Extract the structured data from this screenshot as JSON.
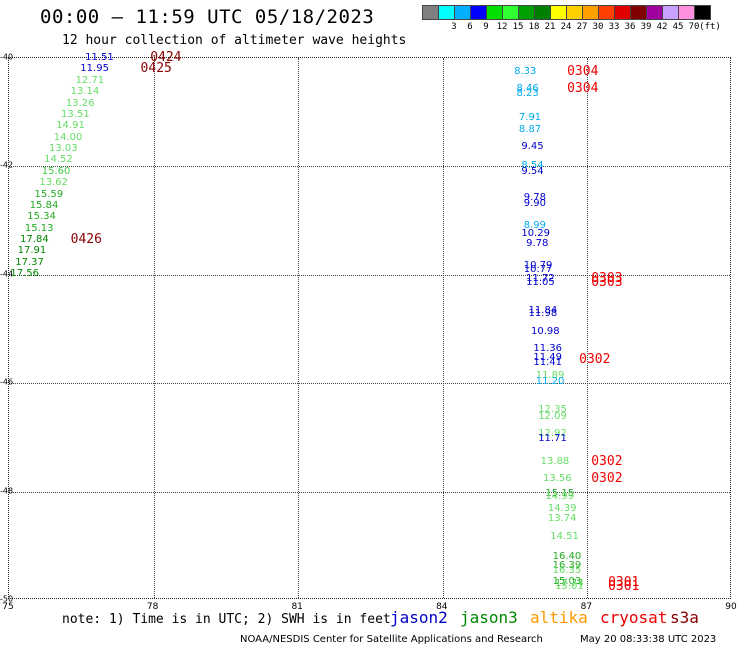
{
  "header": {
    "title": "00:00 – 11:59 UTC 05/18/2023",
    "subtitle": "12 hour collection of altimeter wave heights"
  },
  "colorbar": {
    "bins": [
      {
        "color": "#808080",
        "label": ""
      },
      {
        "color": "#00ffff",
        "label": "3"
      },
      {
        "color": "#00b0ff",
        "label": "6"
      },
      {
        "color": "#0000ff",
        "label": "9"
      },
      {
        "color": "#00e000",
        "label": "12"
      },
      {
        "color": "#30ff30",
        "label": "15"
      },
      {
        "color": "#00a000",
        "label": "18"
      },
      {
        "color": "#008000",
        "label": "21"
      },
      {
        "color": "#ffff00",
        "label": "24"
      },
      {
        "color": "#ffd000",
        "label": "27"
      },
      {
        "color": "#ffa000",
        "label": "30"
      },
      {
        "color": "#ff4000",
        "label": "33"
      },
      {
        "color": "#e00000",
        "label": "36"
      },
      {
        "color": "#800000",
        "label": "39"
      },
      {
        "color": "#a000a0",
        "label": "42"
      },
      {
        "color": "#c8a0ff",
        "label": "45"
      },
      {
        "color": "#ff90e0",
        "label": "70"
      },
      {
        "color": "#000000",
        "label": "(ft)"
      }
    ]
  },
  "map": {
    "lon_range": [
      75,
      90
    ],
    "lat_range": [
      -50,
      -40
    ],
    "x_ticks": [
      "75",
      "78",
      "81",
      "84",
      "87",
      "90"
    ],
    "y_ticks": [
      "-40",
      "-42",
      "-44",
      "-46",
      "-48",
      "-50"
    ]
  },
  "observations": [
    {
      "text": "11.51",
      "lon": 76.6,
      "lat": -40.0,
      "color": "#0000cc"
    },
    {
      "text": "11.95",
      "lon": 76.5,
      "lat": -40.21,
      "color": "#0000cc"
    },
    {
      "text": "12.71",
      "lon": 76.4,
      "lat": -40.42,
      "color": "#66dd66"
    },
    {
      "text": "13.14",
      "lon": 76.3,
      "lat": -40.63,
      "color": "#66dd66"
    },
    {
      "text": "13.26",
      "lon": 76.2,
      "lat": -40.84,
      "color": "#66dd66"
    },
    {
      "text": "13.51",
      "lon": 76.1,
      "lat": -41.05,
      "color": "#66dd66"
    },
    {
      "text": "14.91",
      "lon": 76.0,
      "lat": -41.26,
      "color": "#66dd66"
    },
    {
      "text": "14.00",
      "lon": 75.95,
      "lat": -41.47,
      "color": "#66dd66"
    },
    {
      "text": "13.03",
      "lon": 75.85,
      "lat": -41.68,
      "color": "#66dd66"
    },
    {
      "text": "14.52",
      "lon": 75.75,
      "lat": -41.89,
      "color": "#66dd66"
    },
    {
      "text": "15.60",
      "lon": 75.7,
      "lat": -42.1,
      "color": "#44cc44"
    },
    {
      "text": "13.62",
      "lon": 75.65,
      "lat": -42.31,
      "color": "#66dd66"
    },
    {
      "text": "15.59",
      "lon": 75.55,
      "lat": -42.52,
      "color": "#22aa22"
    },
    {
      "text": "15.84",
      "lon": 75.45,
      "lat": -42.73,
      "color": "#22aa22"
    },
    {
      "text": "15.34",
      "lon": 75.4,
      "lat": -42.94,
      "color": "#22aa22"
    },
    {
      "text": "15.13",
      "lon": 75.35,
      "lat": -43.15,
      "color": "#22aa22"
    },
    {
      "text": "17.84",
      "lon": 75.25,
      "lat": -43.36,
      "color": "#008800"
    },
    {
      "text": "17.91",
      "lon": 75.2,
      "lat": -43.57,
      "color": "#008800"
    },
    {
      "text": "17.37",
      "lon": 75.15,
      "lat": -43.78,
      "color": "#008800"
    },
    {
      "text": "17.56",
      "lon": 75.05,
      "lat": -43.99,
      "color": "#008800"
    },
    {
      "text": "8.33",
      "lon": 85.5,
      "lat": -40.25,
      "color": "#00aaee"
    },
    {
      "text": "8.46",
      "lon": 85.55,
      "lat": -40.58,
      "color": "#00aaee"
    },
    {
      "text": "8.23",
      "lon": 85.55,
      "lat": -40.66,
      "color": "#00aaee"
    },
    {
      "text": "7.91",
      "lon": 85.6,
      "lat": -41.1,
      "color": "#00aaee"
    },
    {
      "text": "8.87",
      "lon": 85.6,
      "lat": -41.32,
      "color": "#00aaee"
    },
    {
      "text": "9.45",
      "lon": 85.65,
      "lat": -41.64,
      "color": "#0000cc"
    },
    {
      "text": "8.54",
      "lon": 85.65,
      "lat": -42.0,
      "color": "#00aaee"
    },
    {
      "text": "9.54",
      "lon": 85.65,
      "lat": -42.1,
      "color": "#0000cc"
    },
    {
      "text": "9.78",
      "lon": 85.7,
      "lat": -42.58,
      "color": "#0000cc"
    },
    {
      "text": "9.90",
      "lon": 85.7,
      "lat": -42.7,
      "color": "#0000cc"
    },
    {
      "text": "8.99",
      "lon": 85.7,
      "lat": -43.1,
      "color": "#00aaee"
    },
    {
      "text": "10.29",
      "lon": 85.65,
      "lat": -43.25,
      "color": "#0000cc"
    },
    {
      "text": "9.78",
      "lon": 85.75,
      "lat": -43.43,
      "color": "#0000cc"
    },
    {
      "text": "10.79",
      "lon": 85.7,
      "lat": -43.83,
      "color": "#0000cc"
    },
    {
      "text": "10.77",
      "lon": 85.7,
      "lat": -43.91,
      "color": "#0000cc"
    },
    {
      "text": "11.72",
      "lon": 85.75,
      "lat": -44.07,
      "color": "#0000cc"
    },
    {
      "text": "11.05",
      "lon": 85.75,
      "lat": -44.16,
      "color": "#0000cc"
    },
    {
      "text": "11.84",
      "lon": 85.8,
      "lat": -44.66,
      "color": "#0000cc"
    },
    {
      "text": "11.98",
      "lon": 85.8,
      "lat": -44.73,
      "color": "#0000cc"
    },
    {
      "text": "10.98",
      "lon": 85.85,
      "lat": -45.05,
      "color": "#0000cc"
    },
    {
      "text": "11.36",
      "lon": 85.9,
      "lat": -45.37,
      "color": "#0000cc"
    },
    {
      "text": "11.49",
      "lon": 85.9,
      "lat": -45.54,
      "color": "#0000cc"
    },
    {
      "text": "11.41",
      "lon": 85.9,
      "lat": -45.62,
      "color": "#0000cc"
    },
    {
      "text": "11.89",
      "lon": 85.95,
      "lat": -45.86,
      "color": "#66dd66"
    },
    {
      "text": "11.20",
      "lon": 85.95,
      "lat": -45.97,
      "color": "#00aaee"
    },
    {
      "text": "12.35",
      "lon": 86.0,
      "lat": -46.5,
      "color": "#66dd66"
    },
    {
      "text": "12.09",
      "lon": 86.0,
      "lat": -46.63,
      "color": "#66dd66"
    },
    {
      "text": "12.92",
      "lon": 86.0,
      "lat": -46.93,
      "color": "#66dd66"
    },
    {
      "text": "11.71",
      "lon": 86.0,
      "lat": -47.03,
      "color": "#0000cc"
    },
    {
      "text": "13.88",
      "lon": 86.05,
      "lat": -47.45,
      "color": "#66dd66"
    },
    {
      "text": "13.56",
      "lon": 86.1,
      "lat": -47.77,
      "color": "#66dd66"
    },
    {
      "text": "15.15",
      "lon": 86.15,
      "lat": -48.04,
      "color": "#22aa22"
    },
    {
      "text": "14.99",
      "lon": 86.15,
      "lat": -48.1,
      "color": "#66dd66"
    },
    {
      "text": "14.39",
      "lon": 86.2,
      "lat": -48.32,
      "color": "#66dd66"
    },
    {
      "text": "13.74",
      "lon": 86.2,
      "lat": -48.51,
      "color": "#66dd66"
    },
    {
      "text": "14.51",
      "lon": 86.25,
      "lat": -48.83,
      "color": "#66dd66"
    },
    {
      "text": "16.40",
      "lon": 86.3,
      "lat": -49.21,
      "color": "#22aa22"
    },
    {
      "text": "16.39",
      "lon": 86.3,
      "lat": -49.37,
      "color": "#22aa22"
    },
    {
      "text": "16.35",
      "lon": 86.3,
      "lat": -49.46,
      "color": "#66dd66"
    },
    {
      "text": "15.03",
      "lon": 86.3,
      "lat": -49.66,
      "color": "#22aa22"
    },
    {
      "text": "17.74",
      "lon": 86.35,
      "lat": -49.7,
      "color": "#44cc44"
    },
    {
      "text": "15.01",
      "lon": 86.35,
      "lat": -49.76,
      "color": "#66dd66"
    }
  ],
  "time_labels": [
    {
      "text": "0424",
      "lon": 77.95,
      "lat": -40.0,
      "color": "#880000"
    },
    {
      "text": "0425",
      "lon": 77.75,
      "lat": -40.21,
      "color": "#880000"
    },
    {
      "text": "0426",
      "lon": 76.3,
      "lat": -43.36,
      "color": "#880000"
    },
    {
      "text": "0304",
      "lon": 86.6,
      "lat": -40.25,
      "color": "#ee0000"
    },
    {
      "text": "0304",
      "lon": 86.6,
      "lat": -40.58,
      "color": "#ee0000"
    },
    {
      "text": "0303",
      "lon": 87.1,
      "lat": -44.07,
      "color": "#ee0000"
    },
    {
      "text": "0303",
      "lon": 87.1,
      "lat": -44.16,
      "color": "#ee0000"
    },
    {
      "text": "0302",
      "lon": 86.85,
      "lat": -45.58,
      "color": "#ee0000"
    },
    {
      "text": "0302",
      "lon": 87.1,
      "lat": -47.45,
      "color": "#ee0000"
    },
    {
      "text": "0302",
      "lon": 87.1,
      "lat": -47.77,
      "color": "#ee0000"
    },
    {
      "text": "0301",
      "lon": 87.45,
      "lat": -49.68,
      "color": "#ee0000"
    },
    {
      "text": "0301",
      "lon": 87.45,
      "lat": -49.76,
      "color": "#ee0000"
    }
  ],
  "note": "note: 1) Time is in UTC; 2) SWH is in feet",
  "legend": [
    {
      "label": "jason2",
      "color": "#0000cc"
    },
    {
      "label": "jason3",
      "color": "#008800"
    },
    {
      "label": "altika",
      "color": "#ff9900"
    },
    {
      "label": "cryosat",
      "color": "#ee0000"
    },
    {
      "label": "s3a",
      "color": "#880000"
    }
  ],
  "footer": {
    "center": "NOAA/NESDIS Center for Satellite Applications and Research",
    "timestamp": "May 20 08:33:38 UTC 2023"
  }
}
